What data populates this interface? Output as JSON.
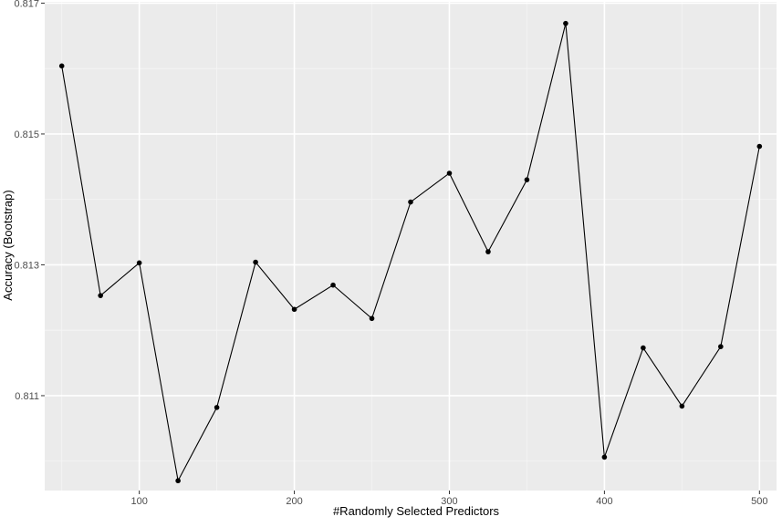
{
  "colors": {
    "panel_background": "#ebebeb",
    "major_grid": "#ffffff",
    "minor_grid": "#f5f5f5",
    "line": "#000000",
    "point": "#000000",
    "tick_label": "#4d4d4d"
  },
  "chart_data": {
    "type": "line",
    "title": "",
    "xlabel": "#Randomly Selected Predictors",
    "ylabel": "Accuracy (Bootstrap)",
    "xlim": [
      39,
      511
    ],
    "ylim": [
      0.80955,
      0.81702
    ],
    "grid": true,
    "markers": true,
    "x_ticks": [
      100,
      200,
      300,
      400,
      500
    ],
    "x_tick_labels": [
      "100",
      "200",
      "300",
      "400",
      "500"
    ],
    "y_ticks": [
      0.811,
      0.813,
      0.815,
      0.817
    ],
    "y_tick_labels": [
      "0.811",
      "0.813",
      "0.815",
      "0.817"
    ],
    "x_minor_ticks": [
      50,
      150,
      250,
      350,
      450
    ],
    "y_minor_ticks": [
      0.81,
      0.812,
      0.814,
      0.816
    ],
    "series": [
      {
        "x": [
          50,
          75,
          100,
          125,
          150,
          175,
          200,
          225,
          250,
          275,
          300,
          325,
          350,
          375,
          400,
          425,
          450,
          475,
          500
        ],
        "values": [
          0.81604,
          0.81253,
          0.81303,
          0.8097,
          0.81082,
          0.81304,
          0.81232,
          0.81269,
          0.81218,
          0.81396,
          0.8144,
          0.8132,
          0.8143,
          0.81669,
          0.81006,
          0.81173,
          0.81084,
          0.81175,
          0.81481
        ]
      }
    ]
  }
}
